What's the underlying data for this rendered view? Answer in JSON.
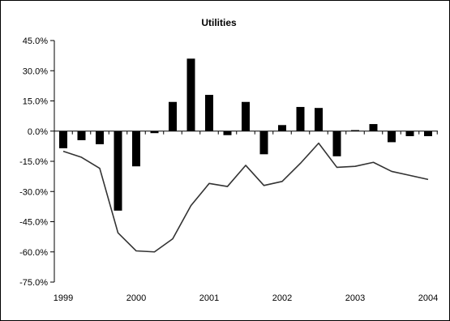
{
  "chart_data": {
    "type": "bar",
    "title": "Utilities",
    "xlabel": "",
    "ylabel": "",
    "ylim": [
      -75,
      45
    ],
    "yticks": [
      45,
      30,
      15,
      0,
      -15,
      -30,
      -45,
      -60,
      -75
    ],
    "ytick_labels": [
      "45.0%",
      "30.0%",
      "15.0%",
      "0.0%",
      "-15.0%",
      "-30.0%",
      "-45.0%",
      "-60.0%",
      "-75.0%"
    ],
    "x_tick_labels": [
      "1999",
      "2000",
      "2001",
      "2002",
      "2003",
      "2004"
    ],
    "x_tick_years": [
      1999,
      2000,
      2001,
      2002,
      2003,
      2004
    ],
    "xlim": [
      1999,
      2004
    ],
    "grid": false,
    "legend": "none",
    "series": [
      {
        "kind": "bar",
        "color": "#000000",
        "x": [
          1999.0,
          1999.25,
          1999.5,
          1999.75,
          2000.0,
          2000.25,
          2000.5,
          2000.75,
          2001.0,
          2001.25,
          2001.5,
          2001.75,
          2002.0,
          2002.25,
          2002.5,
          2002.75,
          2003.0,
          2003.25,
          2003.5,
          2003.75,
          2004.0
        ],
        "values": [
          -8.5,
          -4.5,
          -6.5,
          -39.5,
          -17.5,
          -1.0,
          14.5,
          36.0,
          18.0,
          -2.0,
          14.5,
          -11.5,
          3.0,
          12.0,
          11.5,
          -12.5,
          0.5,
          3.5,
          -5.5,
          -2.5,
          -2.5
        ]
      },
      {
        "kind": "line",
        "color": "#333333",
        "x": [
          1999.0,
          1999.25,
          1999.5,
          1999.75,
          2000.0,
          2000.25,
          2000.5,
          2000.75,
          2001.0,
          2001.25,
          2001.5,
          2001.75,
          2002.0,
          2002.25,
          2002.5,
          2002.75,
          2003.0,
          2003.25,
          2003.5,
          2003.75,
          2004.0
        ],
        "values": [
          -10.0,
          -13.0,
          -18.5,
          -50.5,
          -59.5,
          -60.0,
          -53.5,
          -37.0,
          -26.0,
          -27.5,
          -17.0,
          -27.0,
          -25.0,
          -16.0,
          -6.0,
          -18.0,
          -17.5,
          -15.5,
          -20.0,
          -22.0,
          -24.0
        ]
      }
    ]
  }
}
